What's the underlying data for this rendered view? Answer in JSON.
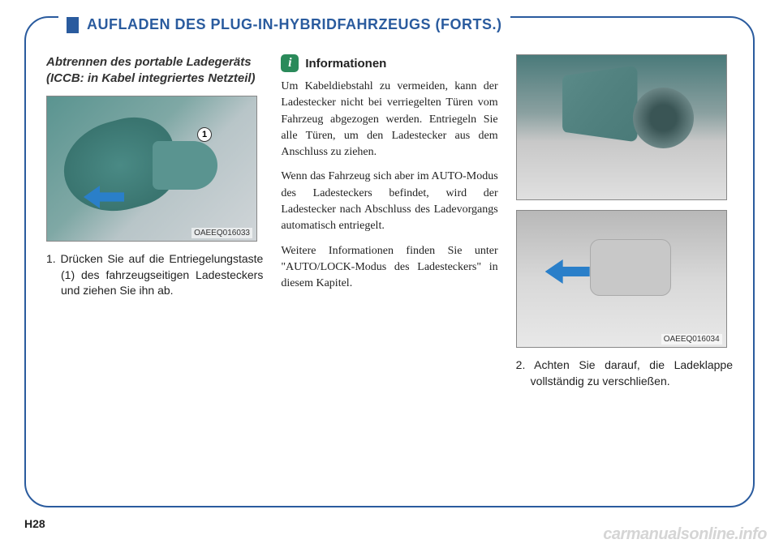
{
  "header": {
    "title": "AUFLADEN DES PLUG-IN-HYBRIDFAHRZEUGS (FORTS.)"
  },
  "column1": {
    "subtitle": "Abtrennen des portable Ladegeräts (ICCB: in Kabel integriertes Netzteil)",
    "figure_caption": "OAEEQ016033",
    "callout_number": "1",
    "step1": "1. Drücken Sie auf die Entriegelungstaste (1) des fahrzeugseitigen Ladesteckers und ziehen Sie ihn ab."
  },
  "column2": {
    "info_icon": "i",
    "info_title": "Informationen",
    "para1": "Um Kabeldiebstahl zu vermeiden, kann der Ladestecker nicht bei verriegelten Türen vom Fahrzeug abgezogen werden. Entriegeln Sie alle Türen, um den Ladestecker aus dem Anschluss zu ziehen.",
    "para2": "Wenn das Fahrzeug sich aber im AUTO-Modus des Ladesteckers befindet, wird der Ladestecker nach Abschluss des Ladevorgangs automatisch entriegelt.",
    "para3": "Weitere Informationen finden Sie unter \"AUTO/LOCK-Modus des Ladesteckers\" in diesem Kapitel."
  },
  "column3": {
    "figure_caption": "OAEEQ016034",
    "step2": "2. Achten Sie darauf, die Ladeklappe vollständig zu verschließen."
  },
  "page_number": "H28",
  "watermark": "carmanualsonline.info",
  "colors": {
    "frame_border": "#2a5b9e",
    "header_text": "#2a5b9e",
    "info_icon_bg": "#2a8a5a",
    "arrow_blue": "#2a7fc9",
    "body_text": "#222222",
    "watermark_color": "#d5d5d5"
  }
}
